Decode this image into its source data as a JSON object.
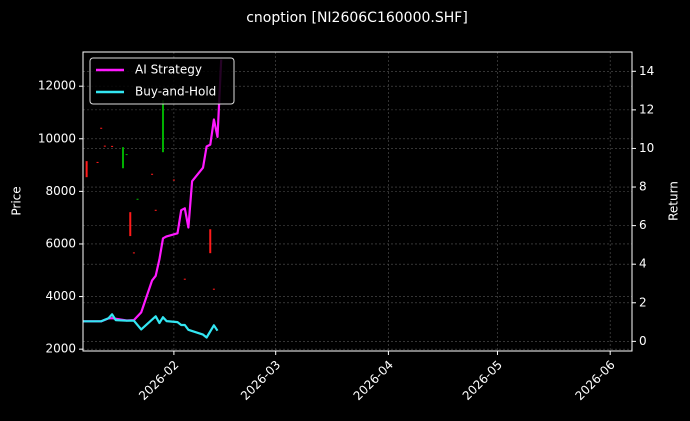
{
  "chart_data": {
    "type": "candlestick",
    "title": "cnoption [NI2606C160000.SHF]",
    "y_label": "Price",
    "y2_label": "Return",
    "xlim": [
      "2026-01-07",
      "2026-06-07"
    ],
    "xticks": [
      {
        "value": "2026-02-01",
        "label": "2026-02"
      },
      {
        "value": "2026-03-01",
        "label": "2026-03"
      },
      {
        "value": "2026-04-01",
        "label": "2026-04"
      },
      {
        "value": "2026-05-01",
        "label": "2026-05"
      },
      {
        "value": "2026-06-01",
        "label": "2026-06"
      }
    ],
    "ylim": [
      1930,
      13300
    ],
    "yticks": [
      2000,
      4000,
      6000,
      8000,
      10000,
      12000
    ],
    "y2lim": [
      -0.5,
      15
    ],
    "y2ticks": [
      0,
      2,
      4,
      6,
      8,
      10,
      12,
      14
    ],
    "grid": true,
    "legend": "upper left",
    "candles": {
      "x": [
        "2026-01-08",
        "2026-01-11",
        "2026-01-12",
        "2026-01-13",
        "2026-01-15",
        "2026-01-18",
        "2026-01-19",
        "2026-01-20",
        "2026-01-21",
        "2026-01-22",
        "2026-01-26",
        "2026-01-27",
        "2026-01-29",
        "2026-02-01",
        "2026-02-04",
        "2026-02-11",
        "2026-02-12"
      ],
      "open": [
        9150,
        9120,
        10420,
        9740,
        9730,
        8880,
        9380,
        7210,
        5680,
        7680,
        8670,
        7300,
        9490,
        8450,
        4680,
        6560,
        4300
      ],
      "close": [
        8540,
        9080,
        10380,
        9700,
        9690,
        9680,
        9420,
        6300,
        5640,
        7720,
        8630,
        7260,
        11470,
        8410,
        4640,
        5650,
        4260
      ],
      "up_color": "#00b000",
      "down_color": "#ff1a1a"
    },
    "series": [
      {
        "name": "AI Strategy",
        "color": "#ff19ff",
        "axis": "y2",
        "x": [
          "2026-01-07",
          "2026-01-12",
          "2026-01-14",
          "2026-01-15",
          "2026-01-19",
          "2026-01-21",
          "2026-01-23",
          "2026-01-26",
          "2026-01-27",
          "2026-01-28",
          "2026-01-29",
          "2026-01-30",
          "2026-02-02",
          "2026-02-03",
          "2026-02-04",
          "2026-02-05",
          "2026-02-06",
          "2026-02-09",
          "2026-02-10",
          "2026-02-11",
          "2026-02-12",
          "2026-02-13",
          "2026-02-14"
        ],
        "values": [
          1.04,
          1.04,
          1.19,
          1.2,
          1.08,
          1.1,
          1.5,
          3.16,
          3.4,
          4.25,
          5.34,
          5.44,
          5.6,
          6.8,
          6.9,
          5.9,
          8.3,
          9.0,
          10.1,
          10.2,
          11.5,
          10.6,
          14.6
        ]
      },
      {
        "name": "Buy-and-Hold",
        "color": "#33e6f2",
        "axis": "y2",
        "x": [
          "2026-01-07",
          "2026-01-12",
          "2026-01-14",
          "2026-01-15",
          "2026-01-16",
          "2026-01-19",
          "2026-01-21",
          "2026-01-23",
          "2026-01-27",
          "2026-01-28",
          "2026-01-29",
          "2026-01-30",
          "2026-02-02",
          "2026-02-03",
          "2026-02-04",
          "2026-02-05",
          "2026-02-09",
          "2026-02-10",
          "2026-02-12",
          "2026-02-13"
        ],
        "values": [
          1.04,
          1.04,
          1.2,
          1.4,
          1.1,
          1.07,
          1.07,
          0.62,
          1.3,
          0.95,
          1.25,
          1.05,
          1.0,
          0.85,
          0.85,
          0.6,
          0.35,
          0.2,
          0.83,
          0.55
        ]
      }
    ]
  }
}
